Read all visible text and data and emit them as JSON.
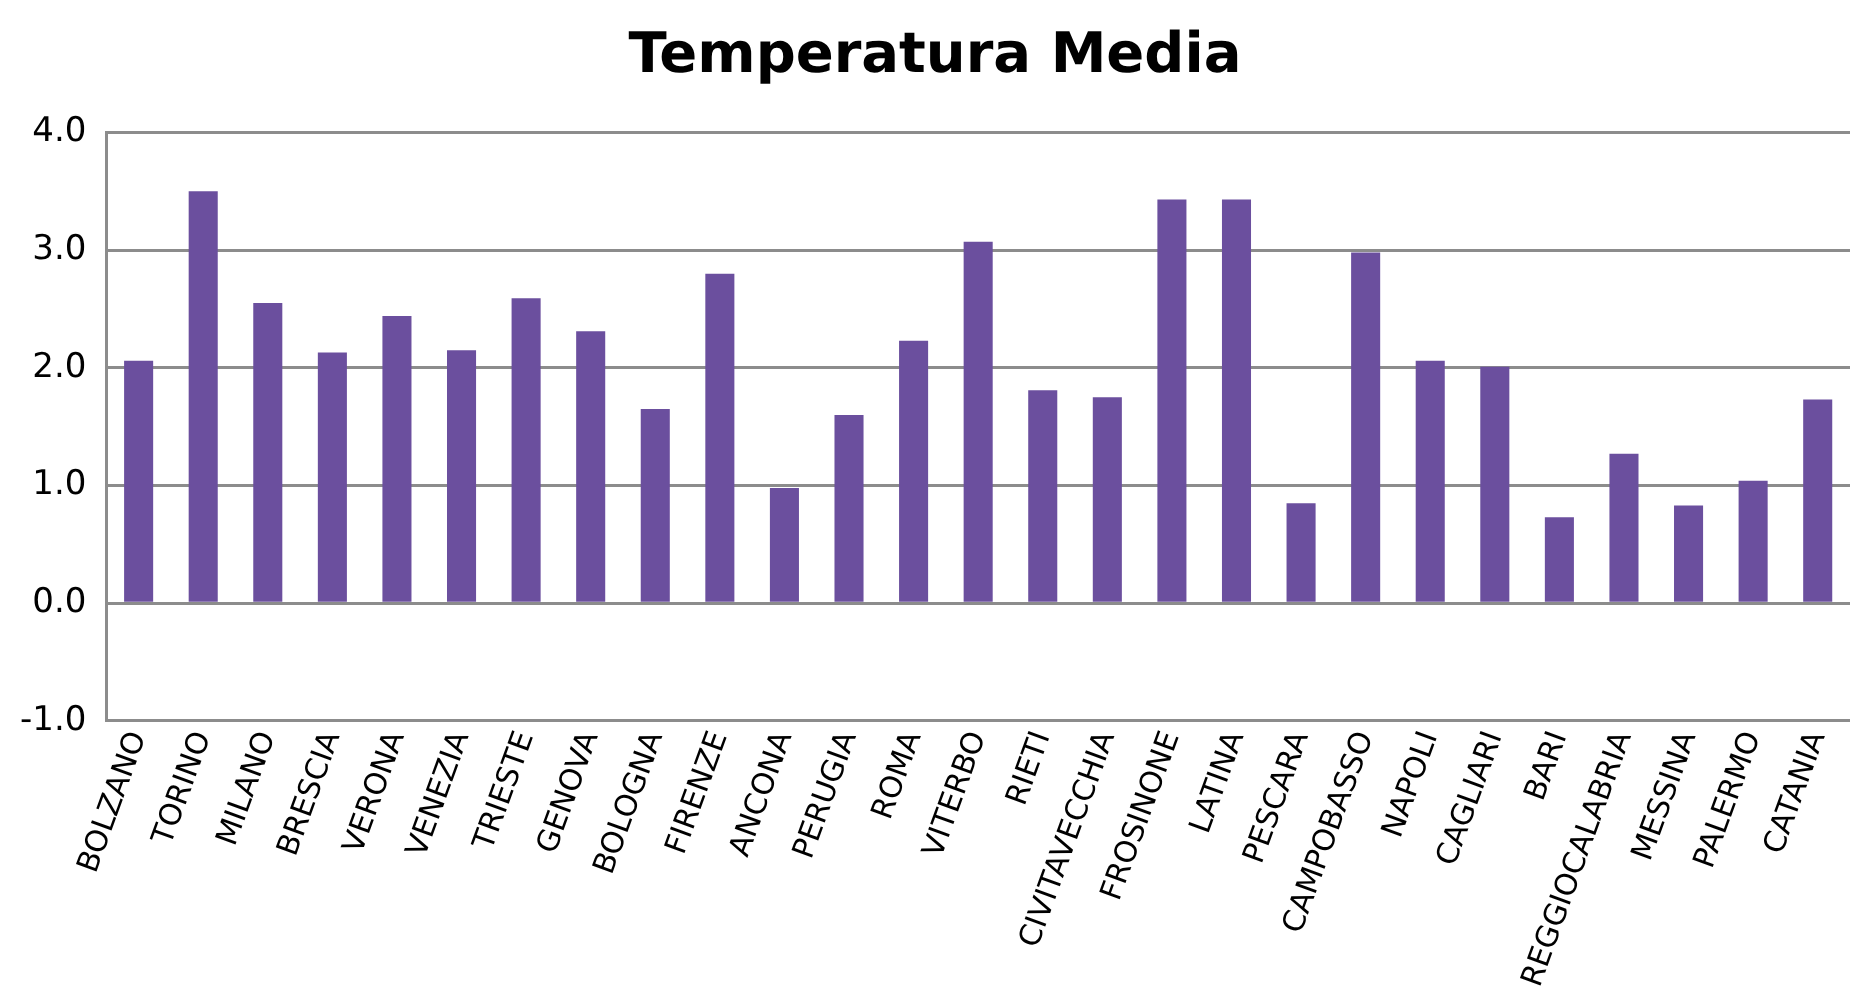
{
  "chart_data": {
    "type": "bar",
    "title": "Temperatura Media",
    "categories": [
      "BOLZANO",
      "TORINO",
      "MILANO",
      "BRESCIA",
      "VERONA",
      "VENEZIA",
      "TRIESTE",
      "GENOVA",
      "BOLOGNA",
      "FIRENZE",
      "ANCONA",
      "PERUGIA",
      "ROMA",
      "VITERBO",
      "RIETI",
      "CIVITAVECCHIA",
      "FROSINONE",
      "LATINA",
      "PESCARA",
      "CAMPOBASSO",
      "NAPOLI",
      "CAGLIARI",
      "BARI",
      "REGGIOCALABRIA",
      "MESSINA",
      "PALERMO",
      "CATANIA"
    ],
    "values": [
      2.06,
      3.5,
      2.55,
      2.13,
      2.44,
      2.15,
      2.59,
      2.31,
      1.65,
      2.8,
      0.98,
      1.6,
      2.23,
      3.07,
      1.81,
      1.75,
      3.43,
      3.43,
      0.85,
      2.98,
      2.06,
      2.01,
      0.73,
      1.27,
      0.83,
      1.04,
      1.73
    ],
    "color": "#6b4f9e",
    "ylim": [
      -1,
      4
    ],
    "yticks": [
      {
        "value": -1,
        "label": "-1.0"
      },
      {
        "value": 0,
        "label": "0.0"
      },
      {
        "value": 1,
        "label": "1.0"
      },
      {
        "value": 2,
        "label": "2.0"
      },
      {
        "value": 3,
        "label": "3.0"
      },
      {
        "value": 4,
        "label": "4.0"
      }
    ],
    "grid": "y"
  }
}
